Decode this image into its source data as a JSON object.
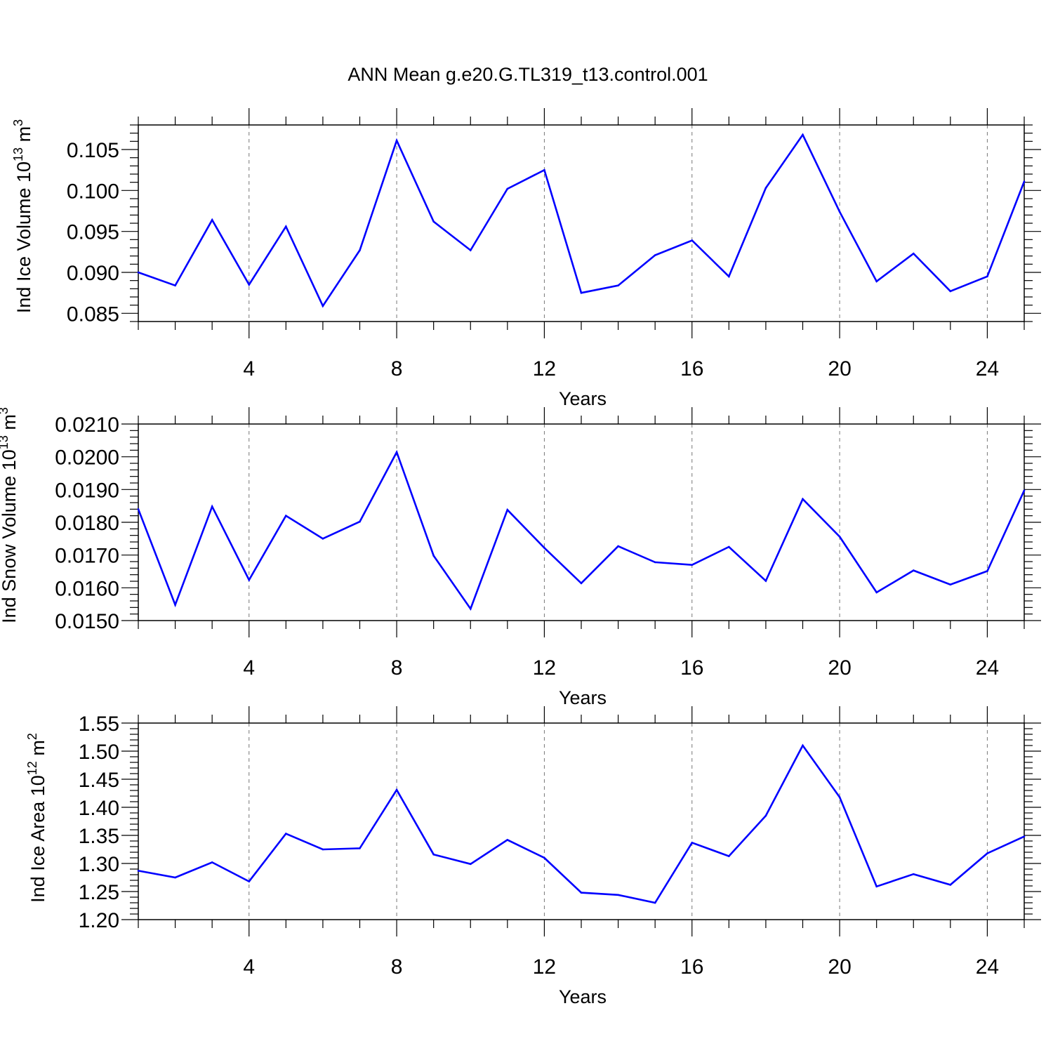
{
  "title": "ANN Mean g.e20.G.TL319_t13.control.001",
  "colors": {
    "line": "#0000ff",
    "grid": "#777777",
    "frame": "#000000"
  },
  "chart_data": [
    {
      "type": "line",
      "title": "ANN Mean g.e20.G.TL319_t13.control.001",
      "xlabel": "Years",
      "ylabel": "Ind Ice Volume 10",
      "ylabel_sup": "13",
      "ylabel_unit": " m",
      "ylabel_unit_sup": "3",
      "xlim": [
        1,
        25
      ],
      "ylim": [
        0.084,
        0.108
      ],
      "xticks": [
        4,
        8,
        12,
        16,
        20,
        24
      ],
      "xtick_labels": [
        "4",
        "8",
        "12",
        "16",
        "20",
        "24"
      ],
      "yticks": [
        0.085,
        0.09,
        0.095,
        0.1,
        0.105
      ],
      "ytick_labels": [
        "0.085",
        "0.090",
        "0.095",
        "0.100",
        "0.105"
      ],
      "grid": "vertical dashed at major x ticks",
      "x": [
        1,
        2,
        3,
        4,
        5,
        6,
        7,
        8,
        9,
        10,
        11,
        12,
        13,
        14,
        15,
        16,
        17,
        18,
        19,
        20,
        21,
        22,
        23,
        24,
        25
      ],
      "values": [
        0.09,
        0.0884,
        0.0964,
        0.0885,
        0.0956,
        0.0859,
        0.0927,
        0.1061,
        0.0962,
        0.0927,
        0.1002,
        0.1025,
        0.0875,
        0.0884,
        0.0921,
        0.0939,
        0.0895,
        0.1003,
        0.1068,
        0.0974,
        0.0889,
        0.0923,
        0.0877,
        0.0895,
        0.1011
      ]
    },
    {
      "type": "line",
      "xlabel": "Years",
      "ylabel": "Ind Snow Volume 10",
      "ylabel_sup": "13",
      "ylabel_unit": " m",
      "ylabel_unit_sup": "3",
      "xlim": [
        1,
        25
      ],
      "ylim": [
        0.015,
        0.021
      ],
      "xticks": [
        4,
        8,
        12,
        16,
        20,
        24
      ],
      "xtick_labels": [
        "4",
        "8",
        "12",
        "16",
        "20",
        "24"
      ],
      "yticks": [
        0.015,
        0.016,
        0.017,
        0.018,
        0.019,
        0.02,
        0.021
      ],
      "ytick_labels": [
        "0.0150",
        "0.0160",
        "0.0170",
        "0.0180",
        "0.0190",
        "0.0200",
        "0.0210"
      ],
      "grid": "vertical dashed at major x ticks",
      "x": [
        1,
        2,
        3,
        4,
        5,
        6,
        7,
        8,
        9,
        10,
        11,
        12,
        13,
        14,
        15,
        16,
        17,
        18,
        19,
        20,
        21,
        22,
        23,
        24,
        25
      ],
      "values": [
        0.0184,
        0.01548,
        0.01848,
        0.01624,
        0.0182,
        0.0175,
        0.01802,
        0.02014,
        0.01698,
        0.01536,
        0.01838,
        0.01722,
        0.01614,
        0.01727,
        0.01678,
        0.0167,
        0.01725,
        0.01621,
        0.01871,
        0.01756,
        0.01586,
        0.01653,
        0.0161,
        0.01651,
        0.01897
      ]
    },
    {
      "type": "line",
      "xlabel": "Years",
      "ylabel": "Ind Ice Area 10",
      "ylabel_sup": "12",
      "ylabel_unit": " m",
      "ylabel_unit_sup": "2",
      "xlim": [
        1,
        25
      ],
      "ylim": [
        1.2,
        1.55
      ],
      "xticks": [
        4,
        8,
        12,
        16,
        20,
        24
      ],
      "xtick_labels": [
        "4",
        "8",
        "12",
        "16",
        "20",
        "24"
      ],
      "yticks": [
        1.2,
        1.25,
        1.3,
        1.35,
        1.4,
        1.45,
        1.5,
        1.55
      ],
      "ytick_labels": [
        "1.20",
        "1.25",
        "1.30",
        "1.35",
        "1.40",
        "1.45",
        "1.50",
        "1.55"
      ],
      "grid": "vertical dashed at major x ticks",
      "x": [
        1,
        2,
        3,
        4,
        5,
        6,
        7,
        8,
        9,
        10,
        11,
        12,
        13,
        14,
        15,
        16,
        17,
        18,
        19,
        20,
        21,
        22,
        23,
        24,
        25
      ],
      "values": [
        1.287,
        1.275,
        1.302,
        1.268,
        1.353,
        1.325,
        1.327,
        1.431,
        1.316,
        1.299,
        1.342,
        1.31,
        1.248,
        1.244,
        1.23,
        1.337,
        1.313,
        1.385,
        1.51,
        1.418,
        1.259,
        1.281,
        1.262,
        1.318,
        1.348
      ]
    }
  ]
}
